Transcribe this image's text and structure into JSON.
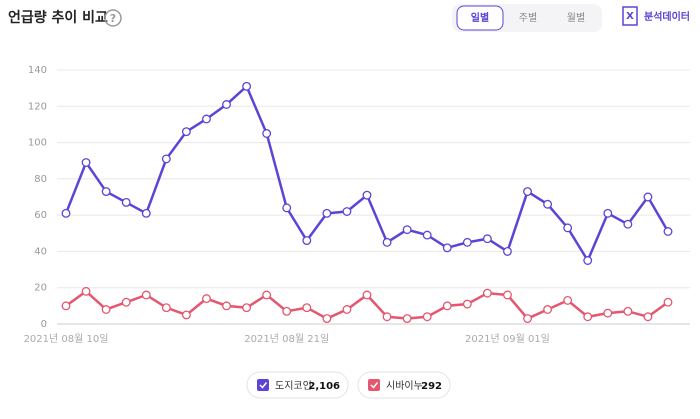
{
  "ui": {
    "title": "언급량 추이 비교",
    "help": "?",
    "tabs": [
      "일별",
      "주별",
      "월별"
    ],
    "active_tab": 0,
    "export": "분석데이터"
  },
  "chart_data": {
    "type": "line",
    "categories": [
      "2021년 08월 10일",
      null,
      null,
      null,
      null,
      null,
      null,
      null,
      null,
      null,
      null,
      "2021년 08월 21일",
      null,
      null,
      null,
      null,
      null,
      null,
      null,
      null,
      null,
      null,
      "2021년 09월 01일",
      null,
      null,
      null,
      null,
      null,
      null,
      null,
      null
    ],
    "series": [
      {
        "name": "도지코인",
        "total": "2,106",
        "color": "#5b45d6",
        "values": [
          61,
          89,
          73,
          67,
          61,
          91,
          106,
          113,
          121,
          131,
          105,
          64,
          46,
          61,
          62,
          71,
          45,
          52,
          49,
          42,
          45,
          47,
          40,
          73,
          66,
          53,
          35,
          61,
          55,
          70,
          51
        ]
      },
      {
        "name": "시바이누",
        "total": "292",
        "color": "#e5566f",
        "values": [
          10,
          18,
          8,
          12,
          16,
          9,
          5,
          14,
          10,
          9,
          16,
          7,
          9,
          3,
          8,
          16,
          4,
          3,
          4,
          10,
          11,
          17,
          16,
          3,
          8,
          13,
          4,
          6,
          7,
          4,
          12
        ]
      }
    ],
    "ylim": [
      0,
      140
    ],
    "yticks": [
      0,
      20,
      40,
      60,
      80,
      100,
      120,
      140
    ],
    "grid": true
  }
}
